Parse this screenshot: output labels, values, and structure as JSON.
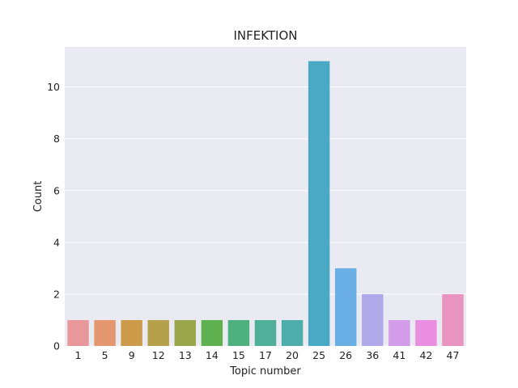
{
  "chart_data": {
    "type": "bar",
    "title": "INFEKTION",
    "xlabel": "Topic number",
    "ylabel": "Count",
    "categories": [
      "1",
      "5",
      "9",
      "12",
      "13",
      "14",
      "15",
      "17",
      "20",
      "25",
      "26",
      "36",
      "41",
      "42",
      "47"
    ],
    "values": [
      1,
      1,
      1,
      1,
      1,
      1,
      1,
      1,
      1,
      11,
      3,
      2,
      1,
      1,
      2
    ],
    "ylim": [
      0,
      11.55
    ],
    "yticks": [
      0,
      2,
      4,
      6,
      8,
      10
    ],
    "grid": true,
    "legend": "none",
    "colors": [
      "#e8989a",
      "#e5976f",
      "#cc9b4a",
      "#b5a04c",
      "#99a74a",
      "#5fb14f",
      "#4fb07f",
      "#4faf98",
      "#4dadaa",
      "#4aaac5",
      "#6aaee6",
      "#afa9ea",
      "#d39cea",
      "#e98ee1",
      "#e993c0"
    ],
    "background": "#eaeaf2",
    "gridline_color": "#ffffff"
  }
}
